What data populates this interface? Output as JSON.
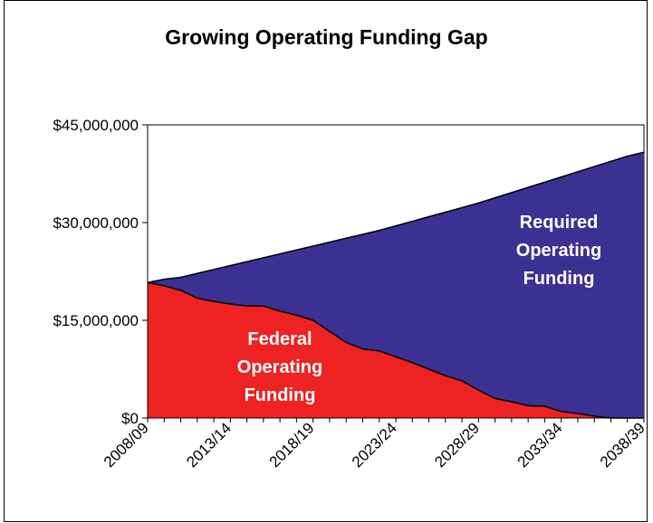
{
  "chart_data": {
    "type": "area",
    "title": "Growing Operating Funding Gap",
    "xlabel": "",
    "ylabel": "",
    "ylim": [
      0,
      45000000
    ],
    "y_ticks": [
      "$0",
      "$15,000,000",
      "$30,000,000",
      "$45,000,000"
    ],
    "y_tick_values": [
      0,
      15000000,
      30000000,
      45000000
    ],
    "x_tick_labels": [
      "2008/09",
      "2013/14",
      "2018/19",
      "2023/24",
      "2028/29",
      "2033/34",
      "2038/39"
    ],
    "categories": [
      "2008/09",
      "2009/10",
      "2010/11",
      "2011/12",
      "2012/13",
      "2013/14",
      "2014/15",
      "2015/16",
      "2016/17",
      "2017/18",
      "2018/19",
      "2019/20",
      "2020/21",
      "2021/22",
      "2022/23",
      "2023/24",
      "2024/25",
      "2025/26",
      "2026/27",
      "2027/28",
      "2028/29",
      "2029/30",
      "2030/31",
      "2031/32",
      "2032/33",
      "2033/34",
      "2034/35",
      "2035/36",
      "2036/37",
      "2037/38",
      "2038/39"
    ],
    "series": [
      {
        "name": "Required Operating Funding",
        "color": "#3d3093",
        "values": [
          20800000,
          21300000,
          21600000,
          22200000,
          22800000,
          23400000,
          24000000,
          24600000,
          25200000,
          25800000,
          26400000,
          27000000,
          27600000,
          28200000,
          28800000,
          29500000,
          30200000,
          30900000,
          31600000,
          32300000,
          33000000,
          33800000,
          34600000,
          35400000,
          36200000,
          37000000,
          37800000,
          38600000,
          39400000,
          40200000,
          40800000
        ]
      },
      {
        "name": "Federal Operating Funding",
        "color": "#ee2222",
        "values": [
          20800000,
          20300000,
          19600000,
          18400000,
          17900000,
          17500000,
          17200000,
          17200000,
          16400000,
          15800000,
          15000000,
          13300000,
          11600000,
          10600000,
          10300000,
          9400000,
          8500000,
          7500000,
          6500000,
          5700000,
          4300000,
          3000000,
          2500000,
          1900000,
          1800000,
          1000000,
          700000,
          300000,
          0,
          0,
          0
        ]
      }
    ],
    "area_labels": {
      "required": [
        "Required",
        "Operating",
        "Funding"
      ],
      "federal": [
        "Federal",
        "Operating",
        "Funding"
      ]
    },
    "grid": false,
    "legend": "none (inline labels)"
  }
}
